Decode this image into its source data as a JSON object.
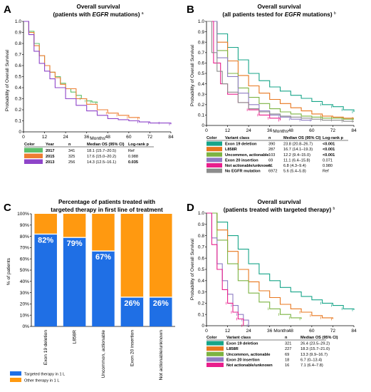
{
  "colors": {
    "green_2017": "#5cbf6a",
    "orange_2015": "#ed7d31",
    "purple_2013": "#8e44c9",
    "teal": "#17a589",
    "orange": "#e8771e",
    "olive_green": "#7cb342",
    "lavender": "#8e7cc3",
    "pink": "#e91e8c",
    "gray": "#8c8c8c",
    "targeted": "#1f6fe5",
    "other": "#ff9910"
  },
  "panels": {
    "A": {
      "label": "A",
      "title_line1": "Overall survival",
      "title_line2_pre": "(patients with ",
      "title_line2_em": "EGFR",
      "title_line2_post": " mutations) ",
      "title_sup": "a"
    },
    "B": {
      "label": "B",
      "title_line1": "Overall survival",
      "title_line2_pre": "(all patients tested for ",
      "title_line2_em": "EGFR",
      "title_line2_post": " mutations) ",
      "title_sup": "b"
    },
    "C": {
      "label": "C",
      "title_line1": "Percentage of patients treated with",
      "title_line2": "targeted therapy in first line of treatment",
      "legend_targeted": "Targeted therapy in 1 L",
      "legend_other": "Other therapy in 1 L"
    },
    "D": {
      "label": "D",
      "title_line1": "Overall survival",
      "title_line2": "(patients treated with targeted therapy) ",
      "title_sup": "b"
    }
  },
  "tables": {
    "A": {
      "headers": [
        "Color",
        "Year",
        "n",
        "Median OS (95% CI)",
        "Log-rank p"
      ],
      "rows": [
        {
          "swatch": "#5cbf6a",
          "cells": [
            "2017",
            "341",
            "18.1 (15.7–20.5)",
            "Ref"
          ],
          "bold_last": false
        },
        {
          "swatch": "#ed7d31",
          "cells": [
            "2015",
            "325",
            "17.6 (15.0–20.2)",
            "0.988"
          ],
          "bold_last": false
        },
        {
          "swatch": "#8e44c9",
          "cells": [
            "2013",
            "256",
            "14.3 (12.5–16.1)",
            "0.035"
          ],
          "bold_last": true
        }
      ]
    },
    "B": {
      "headers": [
        "Color",
        "Variant class",
        "n",
        "Median OS (95% CI)",
        "Log-rank p"
      ],
      "rows": [
        {
          "swatch": "#17a589",
          "cells": [
            "Exon 19 deletion",
            "390",
            "23.8 (20.8–26.7)",
            "<0.001"
          ],
          "bold_last": true
        },
        {
          "swatch": "#e8771e",
          "cells": [
            "L858R",
            "287",
            "16.7 (14.1–19.3)",
            "<0.001"
          ],
          "bold_last": true
        },
        {
          "swatch": "#7cb342",
          "cells": [
            "Uncommon, actionable",
            "103",
            "12.2 (9.4–15.0)",
            "<0.001"
          ],
          "bold_last": true
        },
        {
          "swatch": "#8e7cc3",
          "cells": [
            "Exon 20 insertion",
            "69",
            "11.1 (6.4–15.8)",
            "0.071"
          ],
          "bold_last": false
        },
        {
          "swatch": "#e91e8c",
          "cells": [
            "Not actionable/unknown",
            "61",
            "6.8 (4.3–9.4)",
            "0.980"
          ],
          "bold_last": false
        },
        {
          "swatch": "#8c8c8c",
          "cells": [
            "No EGFR mutation",
            "6972",
            "5.6 (5.4–5.8)",
            "Ref"
          ],
          "bold_last": false
        }
      ]
    },
    "D": {
      "headers": [
        "Color",
        "Variant class",
        "n",
        "Median OS (95% CI)"
      ],
      "rows": [
        {
          "swatch": "#17a589",
          "cells": [
            "Exon 19 deletion",
            "321",
            "26.4 (23.5–29.2)"
          ]
        },
        {
          "swatch": "#e8771e",
          "cells": [
            "L858R",
            "227",
            "18.3 (15.7–21.0)"
          ]
        },
        {
          "swatch": "#7cb342",
          "cells": [
            "Uncommon, actionable",
            "69",
            "13.3 (9.9–16.7)"
          ]
        },
        {
          "swatch": "#8e7cc3",
          "cells": [
            "Exon 20 insertion",
            "18",
            "6.7 (0–13.4)"
          ]
        },
        {
          "swatch": "#e91e8c",
          "cells": [
            "Not actionable/unknown",
            "16",
            "7.1 (6.4–7.8)"
          ]
        }
      ]
    }
  },
  "chart_data": [
    {
      "panel": "A",
      "type": "line",
      "xlabel": "Months",
      "ylabel": "Probability of Overall Survival",
      "xlim": [
        0,
        84
      ],
      "ylim": [
        0,
        1
      ],
      "xticks": [
        0,
        12,
        24,
        36,
        48,
        60,
        72,
        84
      ],
      "yticks": [
        0,
        0.1,
        0.2,
        0.3,
        0.4,
        0.5,
        0.6,
        0.7,
        0.8,
        0.9,
        1.0
      ],
      "ytick_labels": [
        "0",
        "0.1",
        "0.2",
        "0.3",
        "0.4",
        "0.5",
        "0.6",
        "0.7",
        "0.8",
        "0.9",
        "1.0"
      ],
      "series": [
        {
          "name": "2017",
          "color": "#5cbf6a",
          "x": [
            0,
            3,
            6,
            9,
            12,
            15,
            18,
            21,
            24,
            27,
            30,
            33,
            36,
            39,
            42
          ],
          "y": [
            1,
            0.91,
            0.8,
            0.69,
            0.6,
            0.54,
            0.5,
            0.44,
            0.39,
            0.36,
            0.33,
            0.3,
            0.28,
            0.27,
            0.26
          ]
        },
        {
          "name": "2015",
          "color": "#ed7d31",
          "x": [
            0,
            3,
            6,
            9,
            12,
            15,
            18,
            21,
            24,
            30,
            36,
            42,
            48,
            54,
            60,
            66
          ],
          "y": [
            1,
            0.9,
            0.78,
            0.69,
            0.6,
            0.54,
            0.49,
            0.43,
            0.39,
            0.3,
            0.25,
            0.2,
            0.17,
            0.15,
            0.13,
            0.12
          ]
        },
        {
          "name": "2013",
          "color": "#8e44c9",
          "x": [
            0,
            3,
            6,
            9,
            12,
            15,
            18,
            24,
            30,
            36,
            42,
            48,
            54,
            60,
            66,
            72,
            78,
            84
          ],
          "y": [
            1,
            0.88,
            0.73,
            0.62,
            0.55,
            0.48,
            0.4,
            0.3,
            0.24,
            0.19,
            0.15,
            0.12,
            0.11,
            0.1,
            0.09,
            0.08,
            0.08,
            0.07
          ]
        }
      ]
    },
    {
      "panel": "B",
      "type": "line",
      "xlabel": "Months",
      "ylabel": "Probability of Overall Survival",
      "xlim": [
        0,
        84
      ],
      "ylim": [
        0,
        1
      ],
      "xticks": [
        0,
        12,
        24,
        36,
        48,
        60,
        72,
        84
      ],
      "yticks": [
        0,
        0.1,
        0.2,
        0.3,
        0.4,
        0.5,
        0.6,
        0.7,
        0.8,
        0.9,
        1.0
      ],
      "ytick_labels": [
        "0",
        "0.1",
        "0.2",
        "0.3",
        "0.4",
        "0.5",
        "0.6",
        "0.7",
        "0.8",
        "0.9",
        "1.0"
      ],
      "series": [
        {
          "name": "Exon 19 deletion",
          "color": "#17a589",
          "x": [
            0,
            6,
            12,
            18,
            24,
            30,
            36,
            42,
            48,
            54,
            60,
            66,
            72,
            78,
            84
          ],
          "y": [
            1,
            0.88,
            0.75,
            0.63,
            0.5,
            0.43,
            0.37,
            0.33,
            0.29,
            0.26,
            0.23,
            0.2,
            0.18,
            0.15,
            0.13
          ]
        },
        {
          "name": "L858R",
          "color": "#e8771e",
          "x": [
            0,
            6,
            12,
            18,
            24,
            30,
            36,
            42,
            48,
            54,
            60,
            66,
            72,
            78,
            84
          ],
          "y": [
            1,
            0.8,
            0.62,
            0.48,
            0.38,
            0.31,
            0.25,
            0.21,
            0.17,
            0.14,
            0.11,
            0.09,
            0.08,
            0.07,
            0.07
          ]
        },
        {
          "name": "Uncommon, actionable",
          "color": "#7cb342",
          "x": [
            0,
            6,
            12,
            18,
            24,
            30,
            36,
            42,
            48,
            54,
            60,
            66,
            72,
            78,
            84
          ],
          "y": [
            1,
            0.72,
            0.5,
            0.36,
            0.27,
            0.21,
            0.16,
            0.13,
            0.11,
            0.09,
            0.08,
            0.07,
            0.07,
            0.06,
            0.06
          ]
        },
        {
          "name": "Exon 20 insertion",
          "color": "#8e7cc3",
          "x": [
            0,
            6,
            12,
            18,
            24,
            30,
            36,
            42,
            48,
            54,
            60
          ],
          "y": [
            1,
            0.65,
            0.47,
            0.31,
            0.2,
            0.14,
            0.1,
            0.08,
            0.06,
            0.05,
            0.05
          ]
        },
        {
          "name": "Not actionable/unknown",
          "color": "#e91e8c",
          "x": [
            0,
            4,
            8,
            12,
            18,
            24,
            30,
            36,
            42
          ],
          "y": [
            1,
            0.6,
            0.4,
            0.3,
            0.22,
            0.15,
            0.1,
            0.07,
            0.05
          ]
        },
        {
          "name": "No EGFR mutation",
          "color": "#8c8c8c",
          "x": [
            0,
            3,
            6,
            9,
            12,
            18,
            24,
            30,
            36,
            42,
            48,
            54,
            60,
            66,
            72,
            78,
            84
          ],
          "y": [
            1,
            0.7,
            0.52,
            0.4,
            0.32,
            0.22,
            0.16,
            0.13,
            0.11,
            0.09,
            0.08,
            0.07,
            0.06,
            0.05,
            0.05,
            0.04,
            0.04
          ]
        }
      ]
    },
    {
      "panel": "C",
      "type": "bar",
      "stacked": true,
      "ylabel": "% of patients",
      "ylim": [
        0,
        100
      ],
      "yticks": [
        0,
        10,
        20,
        30,
        40,
        50,
        60,
        70,
        80,
        90,
        100
      ],
      "categories": [
        "Exon 19 deletion",
        "L858R",
        "Uncommon, actionable",
        "Exon 20 insertion",
        "Not actionable/unknown"
      ],
      "series": [
        {
          "name": "Targeted therapy in 1 L",
          "color": "#1f6fe5",
          "values": [
            82,
            79,
            67,
            26,
            26
          ]
        },
        {
          "name": "Other therapy in 1 L",
          "color": "#ff9910",
          "values": [
            18,
            21,
            33,
            74,
            74
          ]
        }
      ],
      "data_labels": [
        "82%",
        "79%",
        "67%",
        "26%",
        "26%"
      ]
    },
    {
      "panel": "D",
      "type": "line",
      "xlabel": "Months",
      "ylabel": "Probability of Overall Survival",
      "xlim": [
        0,
        84
      ],
      "ylim": [
        0,
        1
      ],
      "xticks": [
        0,
        12,
        24,
        36,
        48,
        60,
        72,
        84
      ],
      "yticks": [
        0,
        0.1,
        0.2,
        0.3,
        0.4,
        0.5,
        0.6,
        0.7,
        0.8,
        0.9,
        1.0
      ],
      "ytick_labels": [
        "0",
        "0.1",
        "0.2",
        "0.3",
        "0.4",
        "0.5",
        "0.6",
        "0.7",
        "0.8",
        "0.9",
        "1.0"
      ],
      "series": [
        {
          "name": "Exon 19 deletion",
          "color": "#17a589",
          "x": [
            0,
            6,
            12,
            18,
            24,
            30,
            36,
            42,
            48,
            54,
            60,
            66,
            72,
            78,
            84
          ],
          "y": [
            1,
            0.92,
            0.8,
            0.68,
            0.55,
            0.46,
            0.4,
            0.34,
            0.3,
            0.26,
            0.23,
            0.2,
            0.18,
            0.15,
            0.14
          ]
        },
        {
          "name": "L858R",
          "color": "#e8771e",
          "x": [
            0,
            6,
            12,
            18,
            24,
            30,
            36,
            42,
            48,
            54,
            60,
            66,
            72
          ],
          "y": [
            1,
            0.85,
            0.66,
            0.5,
            0.39,
            0.31,
            0.25,
            0.19,
            0.15,
            0.12,
            0.09,
            0.07,
            0.06
          ]
        },
        {
          "name": "Uncommon, actionable",
          "color": "#7cb342",
          "x": [
            0,
            6,
            12,
            18,
            24,
            30,
            36,
            42,
            48,
            54
          ],
          "y": [
            1,
            0.76,
            0.55,
            0.4,
            0.29,
            0.21,
            0.15,
            0.1,
            0.07,
            0.06
          ]
        },
        {
          "name": "Exon 20 insertion",
          "color": "#8e7cc3",
          "x": [
            0,
            3,
            6,
            9,
            12,
            15,
            18,
            21,
            24
          ],
          "y": [
            1,
            0.78,
            0.55,
            0.4,
            0.28,
            0.18,
            0.1,
            0.05,
            0
          ]
        },
        {
          "name": "Not actionable/unknown",
          "color": "#e91e8c",
          "x": [
            0,
            3,
            6,
            9,
            12,
            15,
            18,
            21
          ],
          "y": [
            1,
            0.72,
            0.5,
            0.32,
            0.2,
            0.12,
            0.06,
            0
          ]
        }
      ]
    }
  ]
}
